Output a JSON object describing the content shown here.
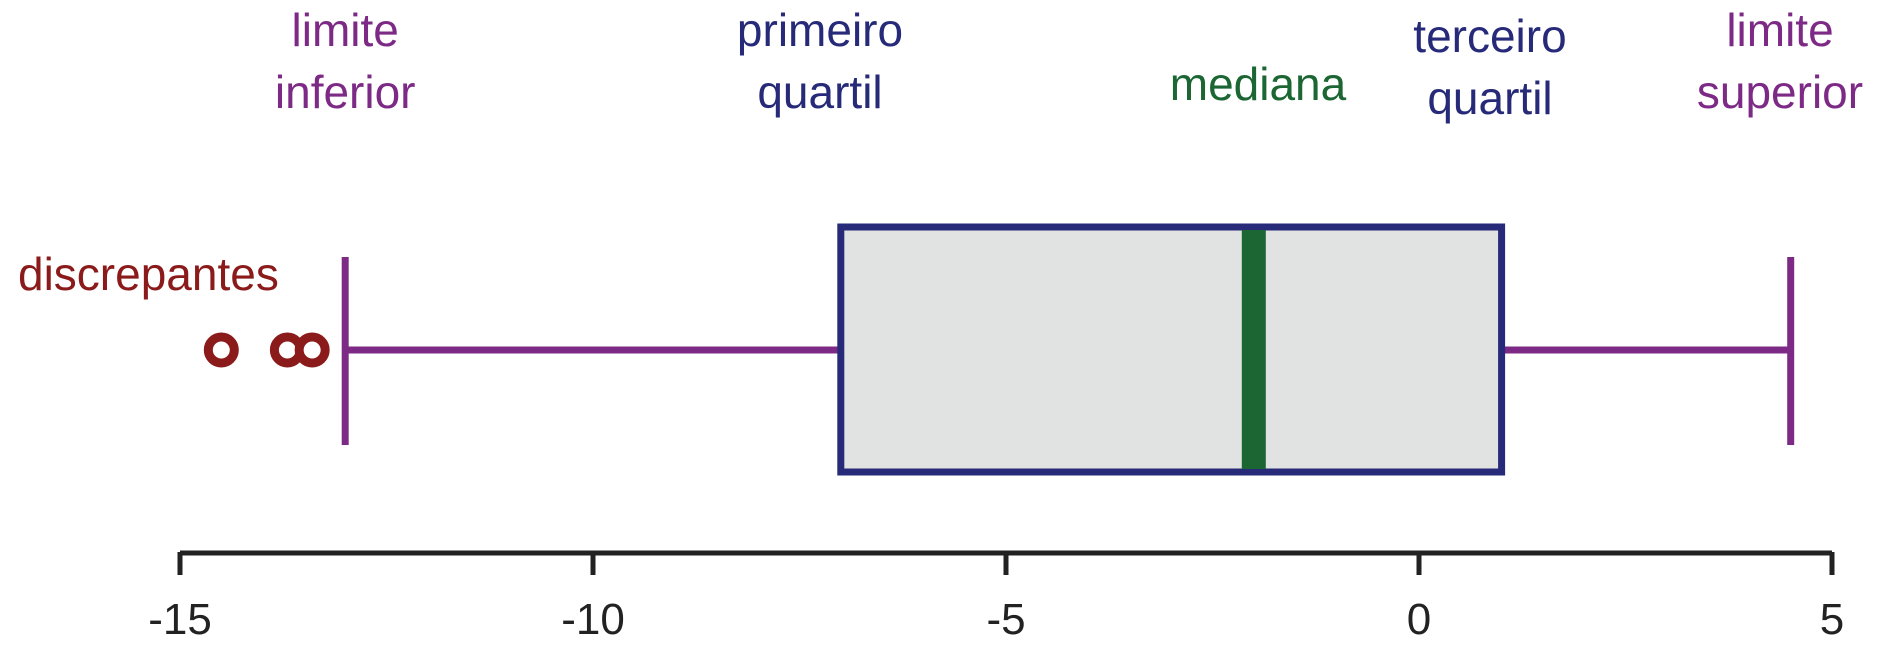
{
  "chart_data": {
    "type": "boxplot",
    "title": "",
    "xlabel": "",
    "ylabel": "",
    "xlim": [
      -15,
      5
    ],
    "x_ticks": [
      -15,
      -10,
      -5,
      0,
      5
    ],
    "x_tick_labels": [
      "-15",
      "-10",
      "-5",
      "0",
      "5"
    ],
    "grid": false,
    "box": {
      "lower_whisker": -13,
      "q1": -7,
      "median": -2,
      "q3": 1,
      "upper_whisker": 4.5,
      "outliers": [
        -14.5,
        -13.7,
        -13.4
      ]
    },
    "annotations": {
      "lower_whisker": [
        "limite",
        "inferior"
      ],
      "q1": [
        "primeiro",
        "quartil"
      ],
      "median": [
        "mediana"
      ],
      "q3": [
        "terceiro",
        "quartil"
      ],
      "upper_whisker": [
        "limite",
        "superior"
      ],
      "outliers": [
        "discrepantes"
      ]
    },
    "colors": {
      "whisker": "#7d2a86",
      "box_edge": "#262a78",
      "box_fill": "#e1e3e3",
      "median": "#1b6633",
      "outlier": "#8b1a1a",
      "axis": "#222222"
    }
  }
}
